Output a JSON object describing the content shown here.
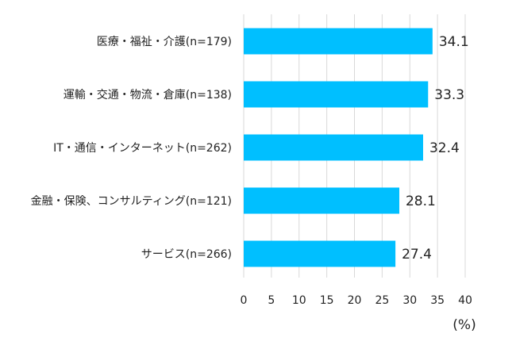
{
  "chart_data": {
    "type": "bar",
    "orientation": "horizontal",
    "categories": [
      "医療・福祉・介護(n=179)",
      "運輸・交通・物流・倉庫(n=138)",
      "IT・通信・インターネット(n=262)",
      "金融・保険、コンサルティング(n=121)",
      "サービス(n=266)"
    ],
    "values": [
      34.1,
      33.3,
      32.4,
      28.1,
      27.4
    ],
    "value_labels": [
      "34.1",
      "33.3",
      "32.4",
      "28.1",
      "27.4"
    ],
    "xlim": [
      0,
      40
    ],
    "xticks": [
      0,
      5,
      10,
      15,
      20,
      25,
      30,
      35,
      40
    ],
    "unit": "(%)",
    "title": "",
    "xlabel": "",
    "ylabel": "",
    "grid": true,
    "bar_color": "#00BFFF",
    "grid_color": "#D9D9D9"
  }
}
